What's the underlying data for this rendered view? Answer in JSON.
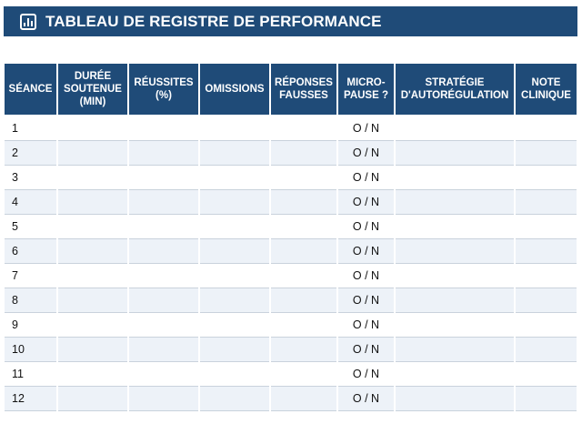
{
  "title": "TABLEAU DE REGISTRE DE PERFORMANCE",
  "header_color": "#1f4b78",
  "columns": [
    "SÉANCE",
    "DURÉE SOUTENUE (MIN)",
    "RÉUSSITES (%)",
    "OMISSIONS",
    "RÉPONSES FAUSSES",
    "MICRO-PAUSE ?",
    "STRATÉGIE D'AUTORÉGULATION",
    "NOTE CLINIQUE"
  ],
  "rows": [
    {
      "seance": "1",
      "micro_pause": "O / N"
    },
    {
      "seance": "2",
      "micro_pause": "O / N"
    },
    {
      "seance": "3",
      "micro_pause": "O / N"
    },
    {
      "seance": "4",
      "micro_pause": "O / N"
    },
    {
      "seance": "5",
      "micro_pause": "O / N"
    },
    {
      "seance": "6",
      "micro_pause": "O / N"
    },
    {
      "seance": "7",
      "micro_pause": "O / N"
    },
    {
      "seance": "8",
      "micro_pause": "O / N"
    },
    {
      "seance": "9",
      "micro_pause": "O / N"
    },
    {
      "seance": "10",
      "micro_pause": "O / N"
    },
    {
      "seance": "11",
      "micro_pause": "O / N"
    },
    {
      "seance": "12",
      "micro_pause": "O / N"
    }
  ]
}
